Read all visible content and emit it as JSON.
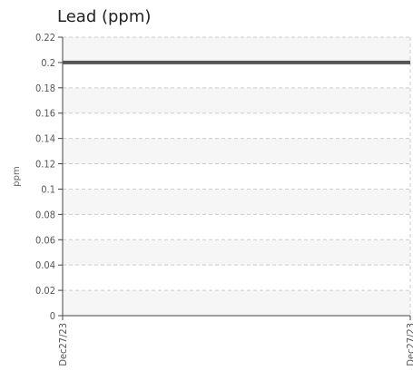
{
  "chart_data": {
    "type": "line",
    "title": "Lead (ppm)",
    "ylabel": "ppm",
    "xlabel": "",
    "ylim": [
      0,
      0.22
    ],
    "y_ticks": [
      0,
      0.02,
      0.04,
      0.06,
      0.08,
      0.1,
      0.12,
      0.14,
      0.16,
      0.18,
      0.2,
      0.22
    ],
    "y_tick_labels": [
      "0",
      "0.02",
      "0.04",
      "0.06",
      "0.08",
      "0.1",
      "0.12",
      "0.14",
      "0.16",
      "0.18",
      "0.2",
      "0.22"
    ],
    "x_tick_labels": [
      "Dec27/23",
      "Dec27/23"
    ],
    "series": [
      {
        "values": [
          0.2,
          0.2
        ],
        "color": "#555555"
      }
    ],
    "grid": true,
    "band_colors": [
      "#f6f6f6",
      "#ffffff"
    ]
  }
}
